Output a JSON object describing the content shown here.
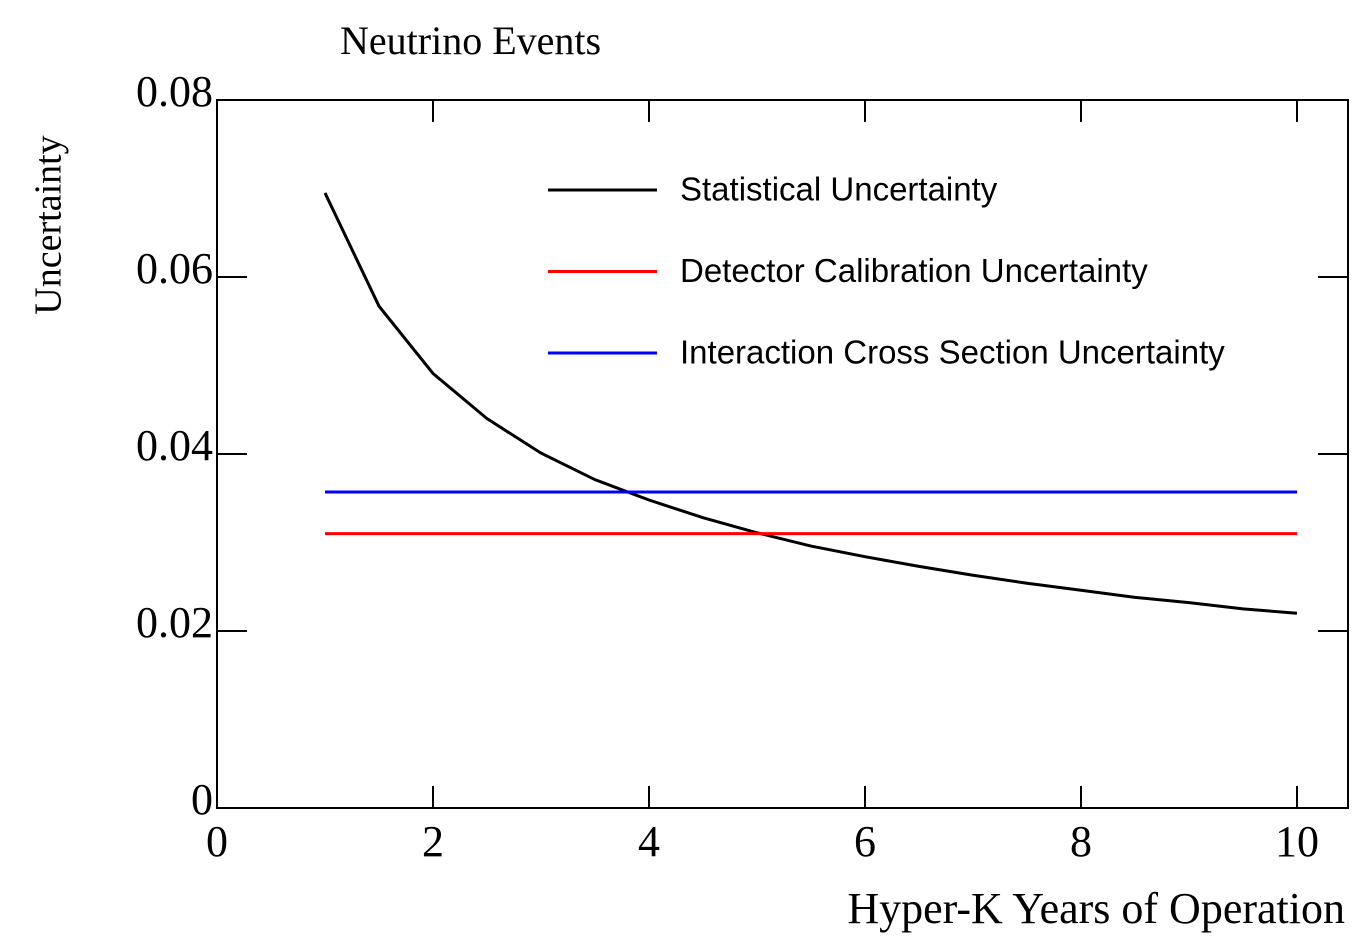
{
  "chart_data": {
    "type": "line",
    "title": "Neutrino Events",
    "xlabel": "Hyper-K Years of Operation",
    "ylabel": "Uncertainty",
    "xlim": [
      0,
      10.5
    ],
    "ylim": [
      0,
      0.08
    ],
    "xticks": [
      0,
      2,
      4,
      6,
      8,
      10
    ],
    "yticks": [
      0,
      0.02,
      0.04,
      0.06,
      0.08
    ],
    "legend": "upper right",
    "series": [
      {
        "name": "Statistical Uncertainty",
        "color": "#000000",
        "x": [
          1,
          1.5,
          2,
          2.5,
          3,
          3.5,
          4,
          4.5,
          5,
          5.5,
          6,
          6.5,
          7,
          7.5,
          8,
          8.5,
          9,
          9.5,
          10
        ],
        "values": [
          0.0695,
          0.0567,
          0.0491,
          0.044,
          0.0401,
          0.0371,
          0.0348,
          0.0328,
          0.0311,
          0.0296,
          0.0284,
          0.0273,
          0.0263,
          0.0254,
          0.0246,
          0.0238,
          0.0232,
          0.0225,
          0.022
        ]
      },
      {
        "name": "Detector Calibration Uncertainty",
        "color": "#ff0000",
        "x": [
          1,
          10
        ],
        "values": [
          0.031,
          0.031
        ]
      },
      {
        "name": "Interaction Cross Section Uncertainty",
        "color": "#0000ff",
        "x": [
          1,
          10
        ],
        "values": [
          0.0357,
          0.0357
        ]
      }
    ]
  }
}
